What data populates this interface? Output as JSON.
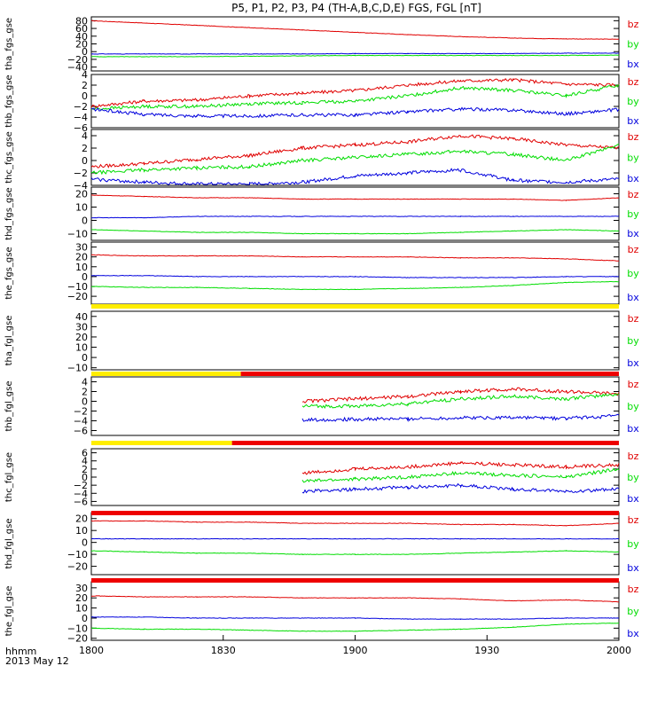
{
  "chart_data": {
    "type": "line",
    "title": "P5, P1, P2, P3, P4 (TH-A,B,C,D,E) FGS, FGL [nT]",
    "x_axis": {
      "ticks": [
        "1800",
        "1830",
        "1900",
        "1930",
        "2000"
      ],
      "label_line1": "hhmm",
      "label_line2": "2013 May 12",
      "range_minutes": [
        0,
        120
      ]
    },
    "panels": [
      {
        "ylabel": "tha_fgs_gse",
        "ylim": [
          -50,
          90
        ],
        "yticks": [
          "80",
          "60",
          "40",
          "20",
          "0",
          "−20",
          "−40"
        ],
        "series": [
          {
            "name": "bz",
            "color": "#e00000",
            "values": [
              80,
              74,
              68,
              62,
              56,
              50,
              44,
              39,
              35,
              33,
              32
            ]
          },
          {
            "name": "by",
            "color": "#00dd00",
            "values": [
              -13,
              -13,
              -13,
              -12,
              -11,
              -10,
              -10,
              -10,
              -10,
              -10,
              -9
            ]
          },
          {
            "name": "bx",
            "color": "#0000dd",
            "values": [
              -6,
              -6,
              -6,
              -6,
              -6,
              -5,
              -5,
              -5,
              -5,
              -4,
              -4
            ]
          }
        ]
      },
      {
        "ylabel": "thb_fgs_gse",
        "ylim": [
          -6,
          4
        ],
        "yticks": [
          "4",
          "2",
          "0",
          "−2",
          "−4",
          "−6"
        ],
        "series": [
          {
            "name": "bz",
            "color": "#e00000",
            "values": [
              -2,
              -1,
              -0.8,
              0,
              0.5,
              1,
              2,
              2.8,
              3,
              2.2,
              2
            ]
          },
          {
            "name": "by",
            "color": "#00dd00",
            "values": [
              -2.5,
              -2,
              -2,
              -1.5,
              -1.3,
              -1,
              0,
              1.5,
              1,
              0,
              2
            ]
          },
          {
            "name": "bx",
            "color": "#0000dd",
            "values": [
              -2.5,
              -3.5,
              -3.8,
              -3.8,
              -3.6,
              -3.6,
              -3,
              -2.5,
              -2.7,
              -3.4,
              -2.6
            ]
          }
        ]
      },
      {
        "ylabel": "thc_fgs_gse",
        "ylim": [
          -4,
          5
        ],
        "yticks": [
          "4",
          "2",
          "0",
          "−2",
          "−4"
        ],
        "series": [
          {
            "name": "bz",
            "color": "#e00000",
            "values": [
              -1,
              -0.5,
              0.2,
              0.8,
              2,
              2.5,
              3,
              4,
              3.5,
              2.5,
              2
            ]
          },
          {
            "name": "by",
            "color": "#00dd00",
            "values": [
              -2,
              -1.5,
              -1.2,
              -1,
              0,
              0.5,
              1,
              1.5,
              1,
              0,
              2.5
            ]
          },
          {
            "name": "bx",
            "color": "#0000dd",
            "values": [
              -3,
              -3.5,
              -3.8,
              -3.8,
              -3.5,
              -2.5,
              -2,
              -1.5,
              -3.2,
              -3.5,
              -3
            ]
          }
        ]
      },
      {
        "ylabel": "thd_fgs_gse",
        "ylim": [
          -15,
          25
        ],
        "yticks": [
          "20",
          "10",
          "0",
          "−10"
        ],
        "series": [
          {
            "name": "bz",
            "color": "#e00000",
            "values": [
              19,
              18,
              17,
              17,
              16,
              16,
              16,
              16,
              16,
              15,
              17
            ]
          },
          {
            "name": "by",
            "color": "#00dd00",
            "values": [
              -7,
              -8,
              -9,
              -9,
              -10,
              -10,
              -10,
              -9,
              -8,
              -7,
              -8
            ]
          },
          {
            "name": "bx",
            "color": "#0000dd",
            "values": [
              2,
              2,
              3,
              3,
              3,
              3,
              3,
              3,
              3,
              3,
              3
            ]
          }
        ]
      },
      {
        "ylabel": "the_fgs_gse",
        "ylim": [
          -28,
          35
        ],
        "yticks": [
          "30",
          "20",
          "10",
          "0",
          "−10",
          "−20"
        ],
        "series": [
          {
            "name": "bz",
            "color": "#e00000",
            "values": [
              22,
              21,
              21,
              21,
              20,
              20,
              20,
              19,
              19,
              18,
              16
            ]
          },
          {
            "name": "by",
            "color": "#00dd00",
            "values": [
              -10,
              -11,
              -11,
              -12,
              -13,
              -13,
              -12,
              -11,
              -9,
              -6,
              -5
            ]
          },
          {
            "name": "bx",
            "color": "#0000dd",
            "values": [
              1,
              1,
              0,
              0,
              0,
              0,
              -1,
              -1,
              -1,
              0,
              0
            ]
          }
        ]
      },
      {
        "ylabel": "tha_fgl_gse",
        "ylim": [
          -12,
          45
        ],
        "yticks": [
          "40",
          "30",
          "20",
          "10",
          "0",
          "−10"
        ],
        "series": []
      },
      {
        "ylabel": "thb_fgl_gse",
        "ylim": [
          -7,
          5
        ],
        "yticks": [
          "4",
          "2",
          "0",
          "−2",
          "−4",
          "−6"
        ],
        "series": [
          {
            "name": "bz",
            "color": "#e00000",
            "values": [
              null,
              null,
              null,
              null,
              0,
              0.5,
              1,
              2,
              2.5,
              2,
              1.5
            ]
          },
          {
            "name": "by",
            "color": "#00dd00",
            "values": [
              null,
              null,
              null,
              null,
              -1,
              -1,
              -0.5,
              0.5,
              1,
              0.5,
              1.5
            ]
          },
          {
            "name": "bx",
            "color": "#0000dd",
            "values": [
              null,
              null,
              null,
              null,
              -3.8,
              -3.7,
              -3.6,
              -3.4,
              -3.3,
              -3.5,
              -3
            ]
          }
        ]
      },
      {
        "ylabel": "thc_fgl_gse",
        "ylim": [
          -7,
          7
        ],
        "yticks": [
          "6",
          "4",
          "2",
          "0",
          "−2",
          "−4",
          "−6"
        ],
        "series": [
          {
            "name": "bz",
            "color": "#e00000",
            "values": [
              null,
              null,
              null,
              null,
              1,
              2,
              2.5,
              3.5,
              3,
              2.5,
              3
            ]
          },
          {
            "name": "by",
            "color": "#00dd00",
            "values": [
              null,
              null,
              null,
              null,
              -1,
              -0.5,
              0,
              1,
              0.5,
              0,
              2
            ]
          },
          {
            "name": "bx",
            "color": "#0000dd",
            "values": [
              null,
              null,
              null,
              null,
              -3.5,
              -3,
              -2.5,
              -2,
              -3,
              -3.5,
              -3
            ]
          }
        ]
      },
      {
        "ylabel": "thd_fgl_gse",
        "ylim": [
          -27,
          25
        ],
        "yticks": [
          "20",
          "10",
          "0",
          "−10",
          "−20"
        ],
        "series": [
          {
            "name": "bz",
            "color": "#e00000",
            "values": [
              18,
              18,
              17,
              17,
              16,
              16,
              16,
              15,
              15,
              14,
              16
            ]
          },
          {
            "name": "by",
            "color": "#00dd00",
            "values": [
              -7,
              -8,
              -9,
              -9,
              -10,
              -10,
              -10,
              -9,
              -8,
              -7,
              -8
            ]
          },
          {
            "name": "bx",
            "color": "#0000dd",
            "values": [
              3,
              3,
              3,
              3,
              3,
              3,
              3,
              3,
              3,
              3,
              3
            ]
          }
        ]
      },
      {
        "ylabel": "the_fgl_gse",
        "ylim": [
          -22,
          36
        ],
        "yticks": [
          "30",
          "20",
          "10",
          "0",
          "−10",
          "−20"
        ],
        "series": [
          {
            "name": "bz",
            "color": "#e00000",
            "values": [
              22,
              21,
              21,
              21,
              20,
              20,
              20,
              19,
              17,
              18,
              16
            ]
          },
          {
            "name": "by",
            "color": "#00dd00",
            "values": [
              -10,
              -11,
              -11,
              -12,
              -13,
              -13,
              -12,
              -11,
              -9,
              -6,
              -5
            ]
          },
          {
            "name": "bx",
            "color": "#0000dd",
            "values": [
              1,
              1,
              0,
              0,
              0,
              0,
              -1,
              -1,
              -1,
              0,
              0
            ]
          }
        ]
      }
    ],
    "legend_entries": [
      {
        "label": "bz",
        "color": "#e00000"
      },
      {
        "label": "by",
        "color": "#00dd00"
      },
      {
        "label": "bx",
        "color": "#0000dd"
      }
    ],
    "mode_bars": [
      {
        "after_panel": 5,
        "segments": [
          {
            "from": 0,
            "to": 120,
            "color": "#ffee00"
          }
        ]
      },
      {
        "after_panel": 6,
        "segments": [
          {
            "from": 0,
            "to": 34,
            "color": "#ffee00"
          },
          {
            "from": 34,
            "to": 120,
            "color": "#ee0000"
          }
        ]
      },
      {
        "after_panel": 7,
        "segments": [
          {
            "from": 0,
            "to": 32,
            "color": "#ffee00"
          },
          {
            "from": 32,
            "to": 120,
            "color": "#ee0000"
          }
        ]
      },
      {
        "after_panel": 8,
        "segments": [
          {
            "from": 0,
            "to": 120,
            "color": "#ee0000"
          }
        ]
      },
      {
        "after_panel": 9,
        "segments": [
          {
            "from": 0,
            "to": 120,
            "color": "#ee0000"
          }
        ]
      }
    ]
  }
}
